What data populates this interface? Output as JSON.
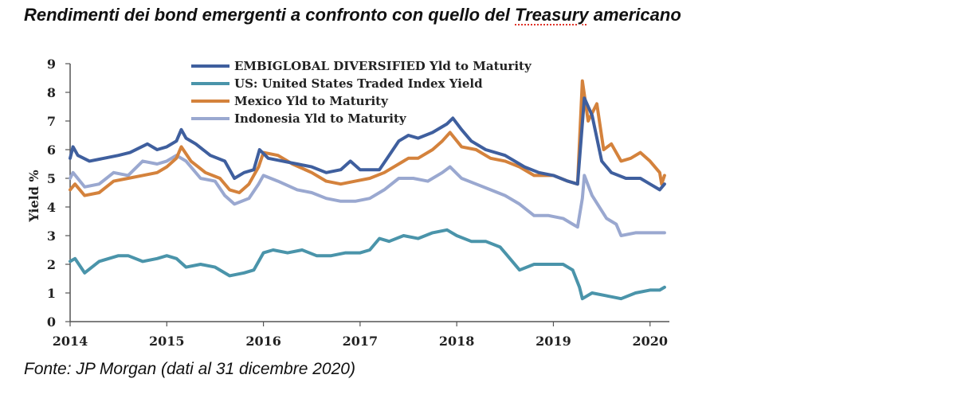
{
  "title": {
    "before": "Rendimenti dei bond emergenti a confronto con quello del ",
    "highlight": "Treasury",
    "after": " americano"
  },
  "source": "Fonte: JP Morgan (dati al 31 dicembre 2020)",
  "chart_data": {
    "type": "line",
    "title": "",
    "xlabel": "",
    "ylabel": "Yield %",
    "ylim": [
      0,
      9
    ],
    "yticks": [
      0,
      1,
      2,
      3,
      4,
      5,
      6,
      7,
      8,
      9
    ],
    "xlim": [
      2014.0,
      2020.2
    ],
    "xticks": [
      2014,
      2015,
      2016,
      2017,
      2018,
      2019,
      2020
    ],
    "grid": false,
    "legend_position": "top-center",
    "series": [
      {
        "name": "EMBIGLOBAL DIVERSIFIED Yld to Maturity",
        "color": "#3f5f9e",
        "points": [
          [
            2014.0,
            5.7
          ],
          [
            2014.03,
            6.1
          ],
          [
            2014.08,
            5.8
          ],
          [
            2014.2,
            5.6
          ],
          [
            2014.35,
            5.7
          ],
          [
            2014.5,
            5.8
          ],
          [
            2014.62,
            5.9
          ],
          [
            2014.8,
            6.2
          ],
          [
            2014.9,
            6.0
          ],
          [
            2015.0,
            6.1
          ],
          [
            2015.1,
            6.3
          ],
          [
            2015.15,
            6.7
          ],
          [
            2015.2,
            6.4
          ],
          [
            2015.3,
            6.2
          ],
          [
            2015.45,
            5.8
          ],
          [
            2015.6,
            5.6
          ],
          [
            2015.7,
            5.0
          ],
          [
            2015.8,
            5.2
          ],
          [
            2015.9,
            5.3
          ],
          [
            2015.96,
            6.0
          ],
          [
            2016.05,
            5.7
          ],
          [
            2016.2,
            5.6
          ],
          [
            2016.35,
            5.5
          ],
          [
            2016.5,
            5.4
          ],
          [
            2016.65,
            5.2
          ],
          [
            2016.8,
            5.3
          ],
          [
            2016.9,
            5.6
          ],
          [
            2017.0,
            5.3
          ],
          [
            2017.2,
            5.3
          ],
          [
            2017.3,
            5.8
          ],
          [
            2017.4,
            6.3
          ],
          [
            2017.5,
            6.5
          ],
          [
            2017.6,
            6.4
          ],
          [
            2017.75,
            6.6
          ],
          [
            2017.9,
            6.9
          ],
          [
            2017.96,
            7.1
          ],
          [
            2018.05,
            6.7
          ],
          [
            2018.15,
            6.3
          ],
          [
            2018.3,
            6.0
          ],
          [
            2018.5,
            5.8
          ],
          [
            2018.7,
            5.4
          ],
          [
            2018.85,
            5.2
          ],
          [
            2019.0,
            5.1
          ],
          [
            2019.15,
            4.9
          ],
          [
            2019.25,
            4.8
          ],
          [
            2019.32,
            7.8
          ],
          [
            2019.4,
            7.2
          ],
          [
            2019.5,
            5.6
          ],
          [
            2019.6,
            5.2
          ],
          [
            2019.75,
            5.0
          ],
          [
            2019.9,
            5.0
          ],
          [
            2020.0,
            4.8
          ],
          [
            2020.1,
            4.6
          ],
          [
            2020.15,
            4.8
          ]
        ]
      },
      {
        "name": "US: United States Traded Index Yield",
        "color": "#4a94aa",
        "points": [
          [
            2014.0,
            2.1
          ],
          [
            2014.05,
            2.2
          ],
          [
            2014.15,
            1.7
          ],
          [
            2014.3,
            2.1
          ],
          [
            2014.5,
            2.3
          ],
          [
            2014.6,
            2.3
          ],
          [
            2014.75,
            2.1
          ],
          [
            2014.9,
            2.2
          ],
          [
            2015.0,
            2.3
          ],
          [
            2015.1,
            2.2
          ],
          [
            2015.2,
            1.9
          ],
          [
            2015.35,
            2.0
          ],
          [
            2015.5,
            1.9
          ],
          [
            2015.65,
            1.6
          ],
          [
            2015.8,
            1.7
          ],
          [
            2015.9,
            1.8
          ],
          [
            2016.0,
            2.4
          ],
          [
            2016.1,
            2.5
          ],
          [
            2016.25,
            2.4
          ],
          [
            2016.4,
            2.5
          ],
          [
            2016.55,
            2.3
          ],
          [
            2016.7,
            2.3
          ],
          [
            2016.85,
            2.4
          ],
          [
            2017.0,
            2.4
          ],
          [
            2017.1,
            2.5
          ],
          [
            2017.2,
            2.9
          ],
          [
            2017.3,
            2.8
          ],
          [
            2017.45,
            3.0
          ],
          [
            2017.6,
            2.9
          ],
          [
            2017.75,
            3.1
          ],
          [
            2017.9,
            3.2
          ],
          [
            2018.0,
            3.0
          ],
          [
            2018.15,
            2.8
          ],
          [
            2018.3,
            2.8
          ],
          [
            2018.45,
            2.6
          ],
          [
            2018.55,
            2.2
          ],
          [
            2018.65,
            1.8
          ],
          [
            2018.8,
            2.0
          ],
          [
            2018.95,
            2.0
          ],
          [
            2019.1,
            2.0
          ],
          [
            2019.2,
            1.8
          ],
          [
            2019.27,
            1.2
          ],
          [
            2019.3,
            0.8
          ],
          [
            2019.4,
            1.0
          ],
          [
            2019.55,
            0.9
          ],
          [
            2019.7,
            0.8
          ],
          [
            2019.85,
            1.0
          ],
          [
            2020.0,
            1.1
          ],
          [
            2020.1,
            1.1
          ],
          [
            2020.15,
            1.2
          ]
        ]
      },
      {
        "name": "Mexico Yld to Maturity",
        "color": "#d4823c",
        "points": [
          [
            2014.0,
            4.6
          ],
          [
            2014.05,
            4.8
          ],
          [
            2014.15,
            4.4
          ],
          [
            2014.3,
            4.5
          ],
          [
            2014.45,
            4.9
          ],
          [
            2014.6,
            5.0
          ],
          [
            2014.75,
            5.1
          ],
          [
            2014.9,
            5.2
          ],
          [
            2015.0,
            5.4
          ],
          [
            2015.1,
            5.7
          ],
          [
            2015.15,
            6.1
          ],
          [
            2015.25,
            5.6
          ],
          [
            2015.4,
            5.2
          ],
          [
            2015.55,
            5.0
          ],
          [
            2015.65,
            4.6
          ],
          [
            2015.75,
            4.5
          ],
          [
            2015.85,
            4.8
          ],
          [
            2015.95,
            5.4
          ],
          [
            2016.0,
            5.9
          ],
          [
            2016.15,
            5.8
          ],
          [
            2016.3,
            5.5
          ],
          [
            2016.5,
            5.2
          ],
          [
            2016.65,
            4.9
          ],
          [
            2016.8,
            4.8
          ],
          [
            2016.95,
            4.9
          ],
          [
            2017.1,
            5.0
          ],
          [
            2017.25,
            5.2
          ],
          [
            2017.4,
            5.5
          ],
          [
            2017.5,
            5.7
          ],
          [
            2017.6,
            5.7
          ],
          [
            2017.75,
            6.0
          ],
          [
            2017.85,
            6.3
          ],
          [
            2017.93,
            6.6
          ],
          [
            2018.05,
            6.1
          ],
          [
            2018.2,
            6.0
          ],
          [
            2018.35,
            5.7
          ],
          [
            2018.5,
            5.6
          ],
          [
            2018.65,
            5.4
          ],
          [
            2018.8,
            5.1
          ],
          [
            2019.0,
            5.1
          ],
          [
            2019.15,
            4.9
          ],
          [
            2019.25,
            4.8
          ],
          [
            2019.3,
            8.4
          ],
          [
            2019.36,
            7.0
          ],
          [
            2019.45,
            7.6
          ],
          [
            2019.52,
            6.0
          ],
          [
            2019.6,
            6.2
          ],
          [
            2019.7,
            5.6
          ],
          [
            2019.8,
            5.7
          ],
          [
            2019.9,
            5.9
          ],
          [
            2020.0,
            5.6
          ],
          [
            2020.1,
            5.2
          ],
          [
            2020.12,
            4.8
          ],
          [
            2020.15,
            5.1
          ]
        ]
      },
      {
        "name": "Indonesia Yld to Maturity",
        "color": "#9aa8d0",
        "points": [
          [
            2014.0,
            5.0
          ],
          [
            2014.03,
            5.2
          ],
          [
            2014.15,
            4.7
          ],
          [
            2014.3,
            4.8
          ],
          [
            2014.45,
            5.2
          ],
          [
            2014.6,
            5.1
          ],
          [
            2014.75,
            5.6
          ],
          [
            2014.9,
            5.5
          ],
          [
            2015.0,
            5.6
          ],
          [
            2015.1,
            5.8
          ],
          [
            2015.2,
            5.6
          ],
          [
            2015.35,
            5.0
          ],
          [
            2015.5,
            4.9
          ],
          [
            2015.6,
            4.4
          ],
          [
            2015.7,
            4.1
          ],
          [
            2015.85,
            4.3
          ],
          [
            2015.95,
            4.8
          ],
          [
            2016.0,
            5.1
          ],
          [
            2016.15,
            4.9
          ],
          [
            2016.35,
            4.6
          ],
          [
            2016.5,
            4.5
          ],
          [
            2016.65,
            4.3
          ],
          [
            2016.8,
            4.2
          ],
          [
            2016.95,
            4.2
          ],
          [
            2017.1,
            4.3
          ],
          [
            2017.25,
            4.6
          ],
          [
            2017.4,
            5.0
          ],
          [
            2017.55,
            5.0
          ],
          [
            2017.7,
            4.9
          ],
          [
            2017.85,
            5.2
          ],
          [
            2017.93,
            5.4
          ],
          [
            2018.05,
            5.0
          ],
          [
            2018.2,
            4.8
          ],
          [
            2018.35,
            4.6
          ],
          [
            2018.5,
            4.4
          ],
          [
            2018.65,
            4.1
          ],
          [
            2018.8,
            3.7
          ],
          [
            2018.95,
            3.7
          ],
          [
            2019.1,
            3.6
          ],
          [
            2019.2,
            3.4
          ],
          [
            2019.25,
            3.3
          ],
          [
            2019.3,
            4.3
          ],
          [
            2019.32,
            5.1
          ],
          [
            2019.4,
            4.4
          ],
          [
            2019.55,
            3.6
          ],
          [
            2019.65,
            3.4
          ],
          [
            2019.7,
            3.0
          ],
          [
            2019.85,
            3.1
          ],
          [
            2020.0,
            3.1
          ],
          [
            2020.1,
            3.1
          ],
          [
            2020.15,
            3.1
          ]
        ]
      }
    ]
  }
}
